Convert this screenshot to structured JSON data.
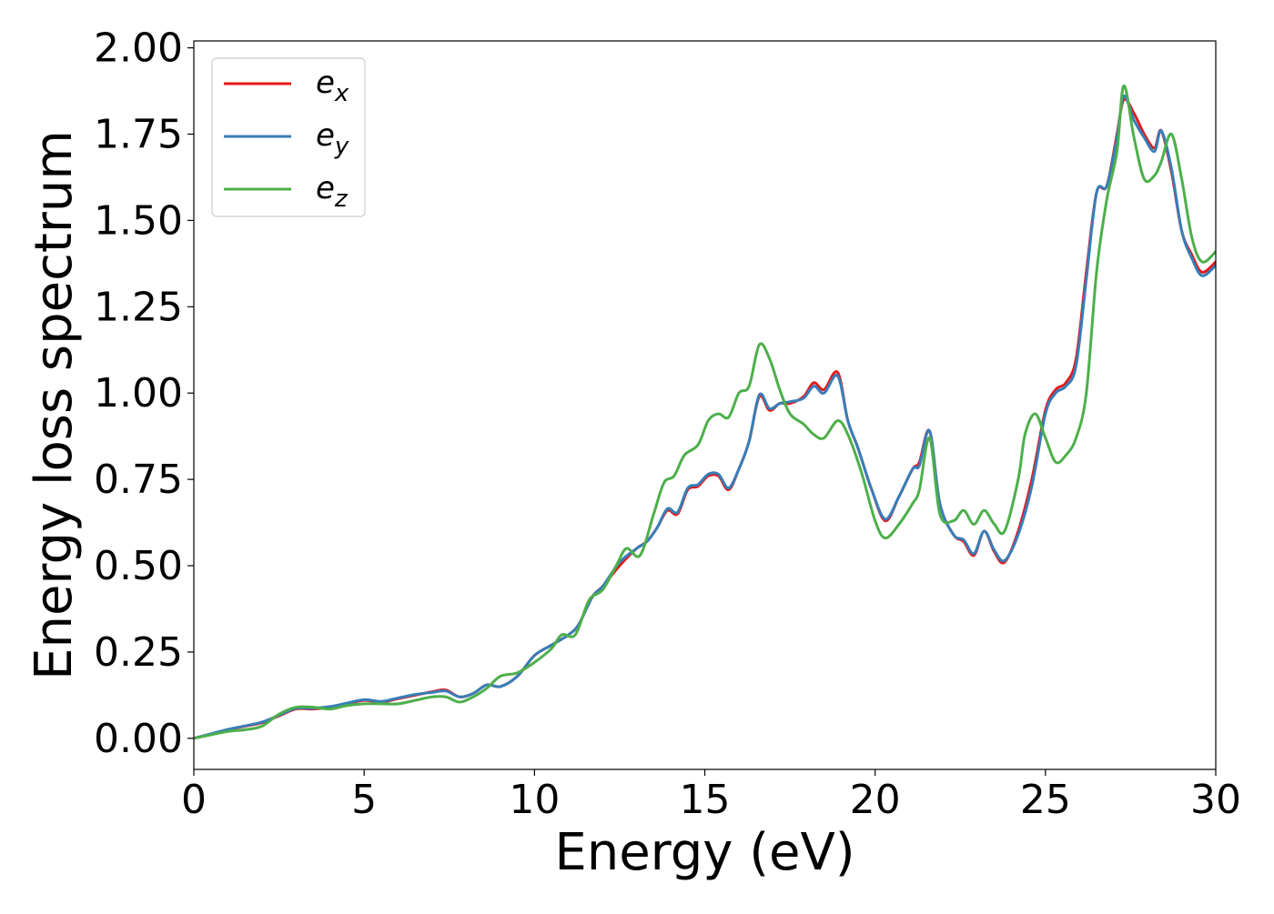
{
  "chart_data": {
    "type": "line",
    "title": "",
    "xlabel": "Energy (eV)",
    "ylabel": "Energy loss spectrum",
    "xlim": [
      0,
      30
    ],
    "ylim": [
      -0.09,
      2.02
    ],
    "xticks": [
      0,
      5,
      10,
      15,
      20,
      25,
      30
    ],
    "xtick_labels": [
      "0",
      "5",
      "10",
      "15",
      "20",
      "25",
      "30"
    ],
    "yticks": [
      0,
      0.25,
      0.5,
      0.75,
      1.0,
      1.25,
      1.5,
      1.75,
      2.0
    ],
    "ytick_labels": [
      "0.00",
      "0.25",
      "0.50",
      "0.75",
      "1.00",
      "1.25",
      "1.50",
      "1.75",
      "2.00"
    ],
    "grid": false,
    "legend": {
      "position": "top-left"
    },
    "series": [
      {
        "name": "e",
        "subscript": "x",
        "color": "#e41a1c",
        "x": [
          0,
          0.5,
          1,
          1.5,
          2,
          2.5,
          3,
          3.5,
          4,
          4.5,
          5,
          5.5,
          6,
          6.5,
          7,
          7.4,
          7.8,
          8.2,
          8.6,
          9,
          9.5,
          10,
          10.5,
          11,
          11.3,
          11.7,
          12,
          12.5,
          13,
          13.3,
          13.6,
          13.9,
          14.2,
          14.5,
          14.8,
          15.1,
          15.4,
          15.7,
          16,
          16.3,
          16.6,
          16.9,
          17.2,
          17.5,
          17.9,
          18.2,
          18.5,
          18.9,
          19.2,
          19.5,
          19.9,
          20.3,
          20.7,
          21.1,
          21.3,
          21.6,
          21.9,
          22.3,
          22.6,
          22.9,
          23.2,
          23.5,
          23.8,
          24.2,
          24.6,
          25,
          25.3,
          25.6,
          25.9,
          26.2,
          26.5,
          26.8,
          27.1,
          27.3,
          27.6,
          27.9,
          28.2,
          28.4,
          28.7,
          29,
          29.3,
          29.6,
          30
        ],
        "y": [
          0,
          0.012,
          0.025,
          0.035,
          0.045,
          0.065,
          0.085,
          0.085,
          0.09,
          0.1,
          0.11,
          0.105,
          0.115,
          0.125,
          0.135,
          0.14,
          0.12,
          0.13,
          0.155,
          0.15,
          0.18,
          0.24,
          0.27,
          0.3,
          0.33,
          0.41,
          0.44,
          0.5,
          0.55,
          0.57,
          0.61,
          0.66,
          0.65,
          0.72,
          0.73,
          0.76,
          0.76,
          0.72,
          0.78,
          0.86,
          0.99,
          0.95,
          0.97,
          0.97,
          0.99,
          1.03,
          1.01,
          1.06,
          0.92,
          0.84,
          0.72,
          0.63,
          0.7,
          0.78,
          0.8,
          0.89,
          0.68,
          0.59,
          0.57,
          0.53,
          0.6,
          0.54,
          0.51,
          0.6,
          0.75,
          0.95,
          1.01,
          1.03,
          1.1,
          1.35,
          1.58,
          1.6,
          1.75,
          1.85,
          1.81,
          1.75,
          1.71,
          1.76,
          1.64,
          1.47,
          1.4,
          1.35,
          1.38
        ]
      },
      {
        "name": "e",
        "subscript": "y",
        "color": "#377eb8",
        "x": [
          0,
          0.5,
          1,
          1.5,
          2,
          2.5,
          3,
          3.5,
          4,
          4.5,
          5,
          5.5,
          6,
          6.5,
          7,
          7.4,
          7.8,
          8.2,
          8.6,
          9,
          9.5,
          10,
          10.5,
          11,
          11.3,
          11.7,
          12,
          12.5,
          13,
          13.3,
          13.6,
          13.9,
          14.2,
          14.5,
          14.8,
          15.1,
          15.4,
          15.7,
          16,
          16.3,
          16.6,
          16.9,
          17.2,
          17.5,
          17.9,
          18.2,
          18.5,
          18.9,
          19.2,
          19.5,
          19.9,
          20.3,
          20.7,
          21.1,
          21.3,
          21.6,
          21.9,
          22.3,
          22.6,
          22.9,
          23.2,
          23.5,
          23.8,
          24.2,
          24.6,
          25,
          25.3,
          25.6,
          25.9,
          26.2,
          26.5,
          26.8,
          27.1,
          27.3,
          27.6,
          27.9,
          28.2,
          28.4,
          28.7,
          29,
          29.3,
          29.6,
          30
        ],
        "y": [
          0,
          0.013,
          0.026,
          0.036,
          0.047,
          0.067,
          0.087,
          0.087,
          0.092,
          0.102,
          0.112,
          0.107,
          0.117,
          0.127,
          0.133,
          0.137,
          0.12,
          0.13,
          0.155,
          0.15,
          0.18,
          0.24,
          0.27,
          0.3,
          0.33,
          0.41,
          0.44,
          0.51,
          0.55,
          0.57,
          0.61,
          0.665,
          0.655,
          0.725,
          0.735,
          0.765,
          0.765,
          0.725,
          0.78,
          0.86,
          0.995,
          0.955,
          0.97,
          0.975,
          0.985,
          1.02,
          1.0,
          1.05,
          0.92,
          0.84,
          0.72,
          0.635,
          0.7,
          0.78,
          0.79,
          0.89,
          0.68,
          0.59,
          0.575,
          0.535,
          0.6,
          0.545,
          0.515,
          0.59,
          0.73,
          0.94,
          1.0,
          1.02,
          1.08,
          1.33,
          1.58,
          1.6,
          1.74,
          1.86,
          1.79,
          1.74,
          1.7,
          1.76,
          1.65,
          1.47,
          1.39,
          1.34,
          1.37
        ]
      },
      {
        "name": "e",
        "subscript": "z",
        "color": "#4daf4a",
        "x": [
          0,
          0.5,
          1,
          1.5,
          2,
          2.5,
          3,
          3.5,
          4,
          4.5,
          5,
          5.5,
          6,
          6.5,
          7,
          7.4,
          7.8,
          8.2,
          8.6,
          9,
          9.5,
          10,
          10.5,
          10.8,
          11.2,
          11.6,
          12,
          12.4,
          12.7,
          13.1,
          13.5,
          13.8,
          14.1,
          14.4,
          14.8,
          15.1,
          15.4,
          15.7,
          16,
          16.3,
          16.6,
          16.9,
          17.2,
          17.5,
          17.9,
          18.2,
          18.5,
          18.9,
          19.2,
          19.6,
          20,
          20.3,
          20.7,
          21.1,
          21.3,
          21.6,
          21.9,
          22.3,
          22.6,
          22.9,
          23.2,
          23.5,
          23.8,
          24.2,
          24.4,
          24.7,
          25,
          25.3,
          25.6,
          25.9,
          26.2,
          26.5,
          26.8,
          27.1,
          27.3,
          27.6,
          27.9,
          28.2,
          28.4,
          28.7,
          29,
          29.3,
          29.6,
          30
        ],
        "y": [
          0,
          0.01,
          0.02,
          0.025,
          0.035,
          0.07,
          0.09,
          0.09,
          0.085,
          0.095,
          0.1,
          0.1,
          0.1,
          0.11,
          0.12,
          0.12,
          0.105,
          0.12,
          0.145,
          0.18,
          0.19,
          0.22,
          0.26,
          0.3,
          0.3,
          0.4,
          0.43,
          0.5,
          0.55,
          0.53,
          0.65,
          0.74,
          0.76,
          0.82,
          0.85,
          0.92,
          0.94,
          0.93,
          1.0,
          1.02,
          1.14,
          1.1,
          1.01,
          0.94,
          0.91,
          0.88,
          0.87,
          0.92,
          0.88,
          0.77,
          0.63,
          0.58,
          0.62,
          0.68,
          0.72,
          0.87,
          0.65,
          0.63,
          0.66,
          0.62,
          0.66,
          0.62,
          0.6,
          0.75,
          0.88,
          0.94,
          0.87,
          0.8,
          0.82,
          0.87,
          1.0,
          1.35,
          1.56,
          1.7,
          1.89,
          1.74,
          1.62,
          1.63,
          1.67,
          1.75,
          1.62,
          1.45,
          1.38,
          1.41
        ]
      }
    ]
  }
}
